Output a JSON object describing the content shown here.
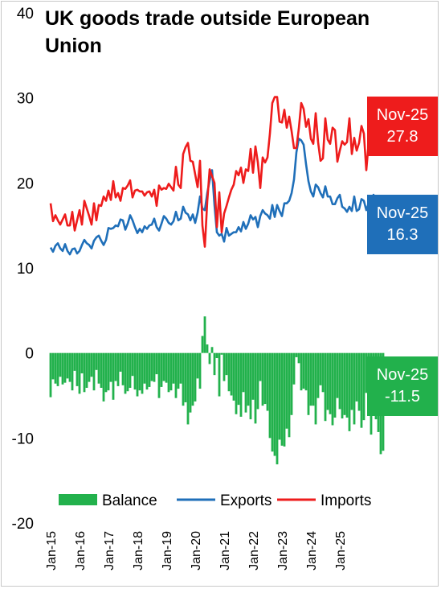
{
  "chart_data": {
    "type": "bar+line",
    "title": "UK goods trade outside European Union",
    "ylim": [
      -20,
      40
    ],
    "yticks": [
      -20,
      -10,
      0,
      10,
      20,
      30,
      40
    ],
    "xticks": [
      "Jan-15",
      "Jan-16",
      "Jan-17",
      "Jan-18",
      "Jan-19",
      "Jan-20",
      "Jan-21",
      "Jan-22",
      "Jan-23",
      "Jan-24",
      "Jan-25"
    ],
    "grid": false,
    "legend_position": "bottom",
    "start": "Jan-15",
    "frequency": "monthly",
    "series": [
      {
        "name": "Balance",
        "type": "bar",
        "color": "#22b14c",
        "values": [
          -5.2,
          -3.1,
          -3.6,
          -3.9,
          -2.8,
          -3.7,
          -3.5,
          -3.0,
          -3.4,
          -4.4,
          -2.1,
          -3.9,
          -4.8,
          -2.4,
          -4.6,
          -4.1,
          -3.4,
          -2.8,
          -4.4,
          -2.0,
          -3.6,
          -4.1,
          -5.7,
          -4.6,
          -4.4,
          -3.4,
          -5.5,
          -3.3,
          -3.9,
          -2.2,
          -3.8,
          -4.8,
          -4.5,
          -4.1,
          -2.7,
          -4.3,
          -5.1,
          -4.4,
          -4.8,
          -3.6,
          -4.3,
          -4.0,
          -3.3,
          -3.4,
          -2.5,
          -5.3,
          -4.0,
          -3.3,
          -3.5,
          -4.6,
          -4.4,
          -3.6,
          -5.3,
          -4.2,
          -3.6,
          -6.2,
          -5.8,
          -8.4,
          -7.0,
          -6.2,
          -5.7,
          -3.0,
          -4.2,
          2.0,
          4.3,
          1.0,
          -1.3,
          0.7,
          -2.6,
          -0.6,
          -5.1,
          -0.2,
          -3.3,
          -2.6,
          -4.5,
          -5.0,
          -5.6,
          -7.2,
          -6.1,
          -7.5,
          -4.6,
          -7.0,
          -6.2,
          -7.8,
          -5.5,
          -8.3,
          -6.6,
          -3.3,
          -6.2,
          -6.0,
          -6.8,
          -10.0,
          -11.6,
          -12.1,
          -13.1,
          -10.2,
          -10.9,
          -11.0,
          -8.9,
          -9.9,
          -7.3,
          -3.7,
          -0.5,
          -1.2,
          -4.4,
          -4.2,
          -4.4,
          -7.3,
          -6.2,
          -6.2,
          -8.4,
          -5.3,
          -3.8,
          -4.6,
          -8.0,
          -6.7,
          -7.2,
          -8.5,
          -7.6,
          -5.3,
          -6.6,
          -7.7,
          -7.3,
          -7.6,
          -9.2,
          -6.7,
          -8.4,
          -5.7,
          -6.8,
          -8.8,
          -7.9,
          -4.7,
          -7.2,
          -9.6,
          -7.3,
          -7.8,
          -9.3,
          -11.9,
          -11.5
        ]
      },
      {
        "name": "Exports",
        "type": "line",
        "color": "#1f6fb9",
        "values": [
          12.4,
          11.9,
          12.6,
          12.9,
          12.3,
          12.0,
          12.8,
          12.0,
          11.6,
          12.2,
          12.3,
          11.7,
          12.0,
          12.7,
          13.3,
          12.9,
          12.7,
          12.3,
          13.2,
          13.6,
          13.8,
          13.2,
          12.7,
          13.3,
          14.7,
          14.6,
          14.7,
          15.0,
          14.9,
          15.7,
          15.6,
          14.5,
          15.2,
          16.2,
          15.6,
          14.8,
          14.1,
          14.6,
          14.2,
          14.9,
          14.6,
          15.0,
          15.1,
          15.8,
          14.8,
          14.4,
          15.2,
          16.1,
          15.8,
          15.3,
          15.1,
          15.5,
          16.6,
          15.6,
          15.8,
          17.2,
          16.5,
          16.3,
          15.6,
          16.3,
          15.3,
          16.5,
          18.4,
          17.0,
          16.8,
          18.8,
          20.3,
          21.5,
          17.4,
          14.2,
          13.8,
          14.0,
          13.1,
          14.7,
          13.8,
          14.0,
          14.2,
          14.2,
          14.8,
          14.3,
          15.4,
          14.6,
          15.2,
          16.2,
          15.7,
          16.0,
          14.8,
          16.1,
          16.8,
          16.4,
          16.2,
          15.8,
          17.4,
          16.0,
          17.4,
          16.7,
          16.1,
          17.6,
          17.6,
          17.9,
          18.8,
          20.4,
          23.6,
          25.2,
          25.0,
          24.5,
          22.2,
          20.2,
          19.0,
          18.4,
          19.8,
          19.5,
          18.8,
          18.3,
          19.6,
          18.4,
          18.4,
          17.5,
          17.5,
          18.2,
          18.6,
          17.2,
          17.0,
          16.6,
          17.2,
          16.7,
          18.4,
          16.7,
          16.9,
          18.1,
          17.9,
          16.8,
          17.6,
          17.9,
          18.6,
          16.7,
          16.6,
          17.2,
          16.4,
          15.4,
          16.3
        ]
      },
      {
        "name": "Imports",
        "type": "line",
        "color": "#ee1c1c",
        "values": [
          17.6,
          15.5,
          16.2,
          15.6,
          15.1,
          15.7,
          16.3,
          15.0,
          15.0,
          16.6,
          14.4,
          15.6,
          16.8,
          15.1,
          17.9,
          17.0,
          16.1,
          15.1,
          17.6,
          15.6,
          17.4,
          17.3,
          18.4,
          17.9,
          19.1,
          18.0,
          20.2,
          18.3,
          18.8,
          17.9,
          19.4,
          19.3,
          19.7,
          20.3,
          18.3,
          19.1,
          19.2,
          19.0,
          19.0,
          18.5,
          18.9,
          19.0,
          18.4,
          19.2,
          17.3,
          19.7,
          19.2,
          19.4,
          19.3,
          19.9,
          19.5,
          19.1,
          21.9,
          19.8,
          19.4,
          23.4,
          24.2,
          24.7,
          22.6,
          22.5,
          21.0,
          19.5,
          22.6,
          15.0,
          12.5,
          17.8,
          21.6,
          20.8,
          20.0,
          14.8,
          18.9,
          14.2,
          16.4,
          17.3,
          18.3,
          19.2,
          19.8,
          21.4,
          20.9,
          21.8,
          20.0,
          21.6,
          21.4,
          24.0,
          21.2,
          24.3,
          22.4,
          19.4,
          23.0,
          22.4,
          23.0,
          25.8,
          29.4,
          30.1,
          30.1,
          27.2,
          27.1,
          28.6,
          26.5,
          27.8,
          26.1,
          24.1,
          24.1,
          26.4,
          29.4,
          28.7,
          26.6,
          27.5,
          25.2,
          24.6,
          28.2,
          24.8,
          22.6,
          22.9,
          27.6,
          25.1,
          24.6,
          26.5,
          26.2,
          22.5,
          23.8,
          24.9,
          24.5,
          24.8,
          27.6,
          23.4,
          25.3,
          23.8,
          24.7,
          26.7,
          25.8,
          21.5,
          24.8,
          26.8,
          23.9,
          25.0,
          25.9,
          27.3,
          27.8
        ]
      }
    ],
    "callouts": [
      {
        "label": "Nov-25",
        "value": "27.8",
        "color": "#ee1c1c"
      },
      {
        "label": "Nov-25",
        "value": "16.3",
        "color": "#1f6fb9"
      },
      {
        "label": "Nov-25",
        "value": "-11.5",
        "color": "#22b14c"
      }
    ]
  }
}
